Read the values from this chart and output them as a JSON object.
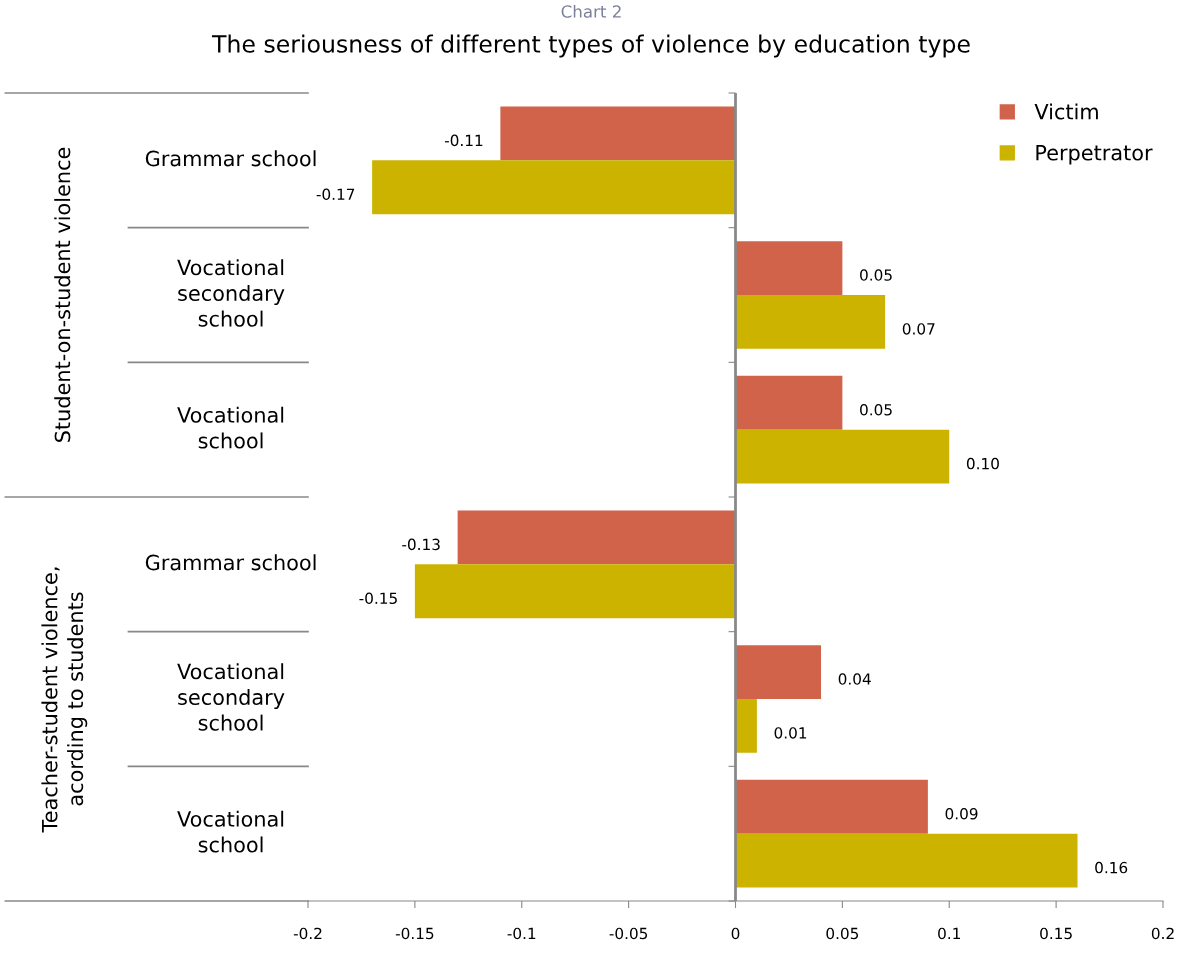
{
  "chart_data": {
    "type": "bar",
    "orientation": "horizontal",
    "subtitle": "Chart 2",
    "title": "The seriousness of different types of violence by education type",
    "categories": [
      "Grammar school",
      "Vocational\nsecondary\nschool",
      "Vocational\nschool",
      "Grammar school",
      "Vocational\nsecondary\nschool",
      "Vocational\nschool"
    ],
    "series": [
      {
        "name": "Victim",
        "color": "#d1634a",
        "values": [
          -0.11,
          0.05,
          0.05,
          -0.13,
          0.04,
          0.09
        ],
        "value_labels": [
          "-0.11",
          "0.05",
          "0.05",
          "-0.13",
          "0.04",
          "0.09"
        ]
      },
      {
        "name": "Perpetrator",
        "color": "#cbb300",
        "values": [
          -0.17,
          0.07,
          0.1,
          -0.15,
          0.01,
          0.16
        ],
        "value_labels": [
          "-0.17",
          "0.07",
          "0.10",
          "-0.15",
          "0.01",
          "0.16"
        ]
      }
    ],
    "annotations": [
      "Student-on-student violence",
      "Teacher-student violence,\nacording to students"
    ],
    "xlim": [
      -0.2,
      0.2
    ],
    "xticks": [
      -0.2,
      -0.15,
      -0.1,
      -0.05,
      0,
      0.05,
      0.1,
      0.15,
      0.2
    ],
    "ref_lines": [
      {
        "axis": "x",
        "value": 0,
        "color": "#888888"
      }
    ],
    "grid": false,
    "legend": "top right"
  }
}
